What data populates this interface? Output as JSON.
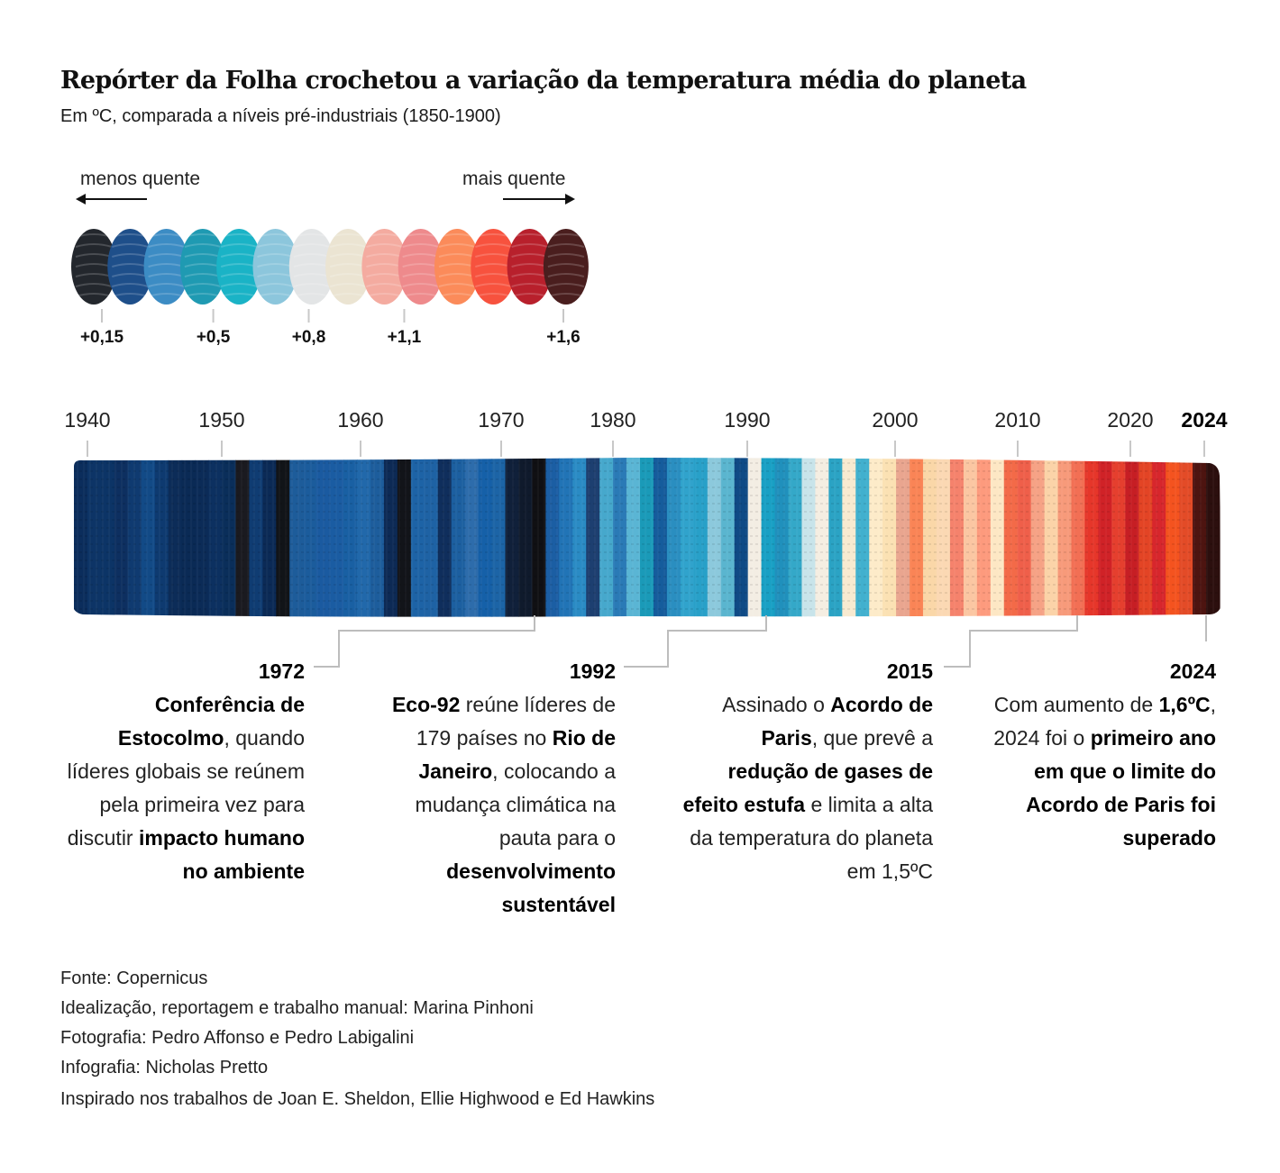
{
  "header": {
    "title": "Repórter da Folha crochetou a variação da temperatura média do planeta",
    "subtitle": "Em ºC, comparada a níveis pré-industriais (1850-1900)"
  },
  "legend": {
    "left_label": "menos quente",
    "right_label": "mais quente",
    "colors": [
      "#23272d",
      "#1e4f8a",
      "#3c8cc4",
      "#1f9ab2",
      "#1ab3c6",
      "#8cc6dc",
      "#e3e5e6",
      "#ebe4d2",
      "#f4aba0",
      "#ee8a8c",
      "#fb8b5a",
      "#f7523e",
      "#b8202c",
      "#4a1e1e"
    ],
    "ticks": [
      {
        "label": "+0,15",
        "value": 0.15
      },
      {
        "label": "+0,5",
        "value": 0.5
      },
      {
        "label": "+0,8",
        "value": 0.8
      },
      {
        "label": "+1,1",
        "value": 1.1
      },
      {
        "label": "+1,6",
        "value": 1.6
      }
    ]
  },
  "chart_data": {
    "type": "heatmap",
    "title": "Repórter da Folha crochetou a variação da temperatura média do planeta",
    "subtitle": "Em ºC, comparada a níveis pré-industriais (1850-1900)",
    "x_range": [
      1940,
      2024
    ],
    "x_tick_labels": [
      "1940",
      "1950",
      "1960",
      "1970",
      "1980",
      "1990",
      "2000",
      "2010",
      "2020",
      "2024"
    ],
    "years": [
      1940,
      1941,
      1942,
      1943,
      1944,
      1945,
      1946,
      1947,
      1948,
      1949,
      1950,
      1951,
      1952,
      1953,
      1954,
      1955,
      1956,
      1957,
      1958,
      1959,
      1960,
      1961,
      1962,
      1963,
      1964,
      1965,
      1966,
      1967,
      1968,
      1969,
      1970,
      1971,
      1972,
      1973,
      1974,
      1975,
      1976,
      1977,
      1978,
      1979,
      1980,
      1981,
      1982,
      1983,
      1984,
      1985,
      1986,
      1987,
      1988,
      1989,
      1990,
      1991,
      1992,
      1993,
      1994,
      1995,
      1996,
      1997,
      1998,
      1999,
      2000,
      2001,
      2002,
      2003,
      2004,
      2005,
      2006,
      2007,
      2008,
      2009,
      2010,
      2011,
      2012,
      2013,
      2014,
      2015,
      2016,
      2017,
      2018,
      2019,
      2020,
      2021,
      2022,
      2023,
      2024
    ],
    "stripe_colors": [
      "#0b2d5c",
      "#0d3466",
      "#0c3466",
      "#0d2f60",
      "#0f3a70",
      "#124a86",
      "#0e3a70",
      "#0c2c58",
      "#0a2a55",
      "#0b2b57",
      "#0c3060",
      "#0a2e5a",
      "#1a1a20",
      "#0f3c72",
      "#0b2a56",
      "#111418",
      "#1d5c9a",
      "#1b5c9c",
      "#1a5aa0",
      "#1a5ca2",
      "#1960a3",
      "#2168aa",
      "#1d5d9c",
      "#0d2a55",
      "#121419",
      "#1d63a6",
      "#1e62a4",
      "#0f2e5c",
      "#1c5fa0",
      "#2d6cab",
      "#1560a8",
      "#1c64a6",
      "#10203a",
      "#0f1a2c",
      "#101013",
      "#1b5ea3",
      "#2174b6",
      "#2a8bc4",
      "#1d3f70",
      "#46a8cc",
      "#2a7ab6",
      "#5ab5d4",
      "#1a9ab8",
      "#155c9c",
      "#2a8ec0",
      "#30a3cc",
      "#28a0c8",
      "#8cc9dc",
      "#5ab5cf",
      "#0f4a85",
      "#f3ede3",
      "#18a0c4",
      "#2090bc",
      "#34a8c8",
      "#c8e4ea",
      "#f5eee2",
      "#2ba3c4",
      "#f8ead0",
      "#41b0ce",
      "#fdebc9",
      "#fbe1b3",
      "#e9a58f",
      "#fa8456",
      "#fad7a8",
      "#fbd8b3",
      "#f5826c",
      "#fbc6a2",
      "#fd9a7d",
      "#fde7c4",
      "#f36a48",
      "#ef5f4a",
      "#f6a285",
      "#fbd3a8",
      "#f79a7a",
      "#f26f54",
      "#e6362a",
      "#d02227",
      "#e53f2e",
      "#c61e24",
      "#e34425",
      "#d7262c",
      "#f4531f",
      "#e34b27",
      "#4d1410",
      "#2c0f0e"
    ],
    "unit": "ºC"
  },
  "annotations": [
    {
      "year": "1972",
      "text_html": "<b>Conferência de Estocolmo</b>, quando líderes globais se reúnem pela primeira vez para discutir <b>impacto humano no ambiente</b>"
    },
    {
      "year": "1992",
      "text_html": "<b>Eco-92</b> reúne líderes de 179 países no <b>Rio de Janeiro</b>, colocando a mudança climática na pauta para o <b>desenvolvimento sustentável</b>"
    },
    {
      "year": "2015",
      "text_html": "Assinado o <b>Acordo de Paris</b>, que prevê a <b>redução de gases de efeito estufa</b> e limita a alta da temperatura do planeta em 1,5ºC"
    },
    {
      "year": "2024",
      "text_html": "Com aumento de <b>1,6ºC</b>, 2024 foi o <b>primeiro ano em que o limite do Acordo de Paris foi superado</b>"
    }
  ],
  "credits": [
    "Fonte: Copernicus",
    "Idealização, reportagem e trabalho manual: Marina Pinhoni",
    "Fotografia: Pedro Affonso e Pedro Labigalini",
    "Infografia: Nicholas Pretto",
    "Inspirado nos trabalhos de Joan E. Sheldon, Ellie Highwood e Ed Hawkins"
  ],
  "colors": {
    "connector": "#bdbdbd",
    "arrow": "#111111"
  }
}
